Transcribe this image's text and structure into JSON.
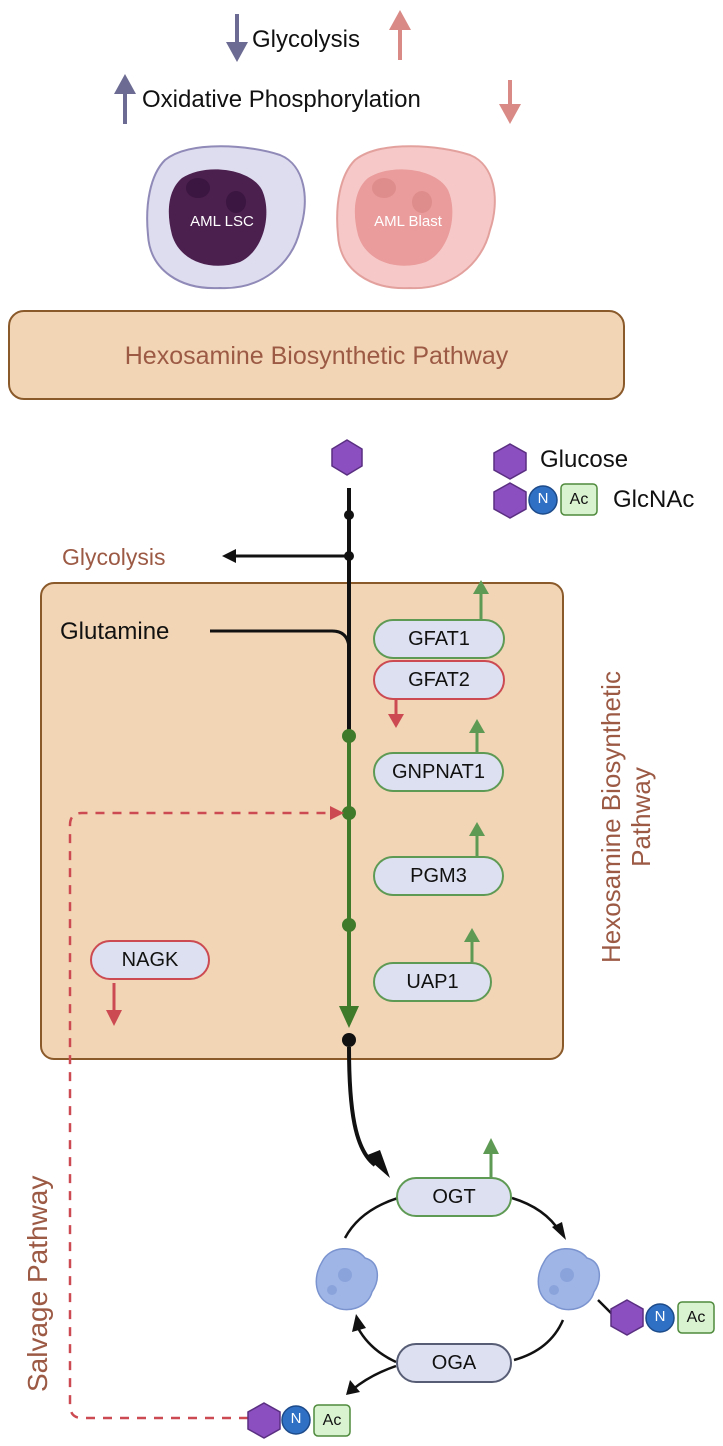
{
  "header": {
    "glycolysis_label": "Glycolysis",
    "oxphos_label": "Oxidative Phosphorylation"
  },
  "cells": {
    "lsc_label": "AML LSC",
    "blast_label": "AML Blast"
  },
  "hbp_banner": {
    "label": "Hexosamine Biosynthetic Pathway"
  },
  "legend": {
    "glucose_label": "Glucose",
    "glcnac_label": "GlcNAc",
    "n_label": "N",
    "ac_label": "Ac"
  },
  "pathway": {
    "glycolysis_branch": "Glycolysis",
    "glutamine_label": "Glutamine",
    "side_label_line1": "Hexosamine Biosynthetic",
    "side_label_line2": "Pathway",
    "salvage_label": "Salvage Pathway"
  },
  "enzymes": {
    "gfat1": "GFAT1",
    "gfat2": "GFAT2",
    "gnpnat1": "GNPNAT1",
    "pgm3": "PGM3",
    "uap1": "UAP1",
    "nagk": "NAGK",
    "ogt": "OGT",
    "oga": "OGA"
  },
  "colors": {
    "lsc_arrow": "#6b6b93",
    "blast_arrow": "#d98a86",
    "up_green": "#5f9a55",
    "down_red": "#cc4b52",
    "hbp_green": "#3f7a2a",
    "glucose_purple": "#8b4fbf",
    "n_blue": "#2f6fc4",
    "ac_green": "#d9f2d0",
    "brown_text": "#9c5a45",
    "box_fill": "#f2d5b5"
  }
}
